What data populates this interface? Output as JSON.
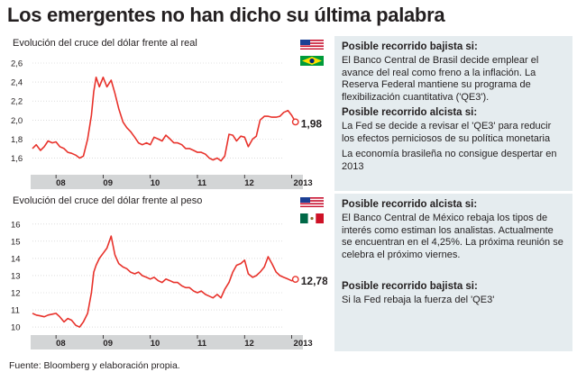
{
  "page": {
    "title": "Los emergentes no han dicho su última palabra",
    "source": "Fuente: Bloomberg y elaboración propia."
  },
  "charts": {
    "brl": {
      "title": "Evolución del cruce del dólar frente al real",
      "last_label": "1,98",
      "y_ticks": [
        "2,6",
        "2,4",
        "2,2",
        "2,0",
        "1,8",
        "1,6"
      ],
      "x_ticks": [
        "08",
        "09",
        "10",
        "11",
        "12",
        "2013"
      ]
    },
    "mxn": {
      "title": "Evolución del cruce del dólar frente al peso",
      "last_label": "12,78",
      "y_ticks": [
        "16",
        "15",
        "14",
        "13",
        "12",
        "11",
        "10"
      ],
      "x_ticks": [
        "08",
        "09",
        "10",
        "11",
        "12",
        "2013"
      ]
    }
  },
  "panel_top": {
    "head_1": "Posible recorrido bajista si:",
    "text_1": "El Banco Central de Brasil decide emplear el avance del real como freno a la inflación. La Reserva Federal mantiene su programa de flexibilización cuantitativa ('QE3').",
    "head_2": "Posible recorrido alcista si:",
    "text_2": "La Fed se decide a revisar el 'QE3' para reducir los efectos perniciosos de su política monetaria",
    "text_3": "La economía brasileña no consigue despertar en 2013"
  },
  "panel_bottom": {
    "head_1": "Posible recorrido alcista si:",
    "text_1": "El Banco Central de México rebaja los tipos de interés como estiman los analistas. Actualmente se encuentran en el 4,25%. La próxima reunión se celebra el próximo viernes.",
    "head_2": "Posible recorrido bajista si:",
    "text_2": "Si la Fed rebaja la fuerza del 'QE3'"
  },
  "colors": {
    "line": "#e8322b",
    "axis_band": "#d3d5d6",
    "panel_bg": "#e5ecef",
    "grid": "#c8c8c8"
  },
  "chart_data": [
    {
      "type": "line",
      "title": "Evolución del cruce del dólar frente al real",
      "x_ticks": [
        "08",
        "09",
        "10",
        "11",
        "12",
        "2013"
      ],
      "ylim": [
        1.5,
        2.6
      ],
      "y_ticks": [
        1.6,
        1.8,
        2.0,
        2.2,
        2.4,
        2.6
      ],
      "grid": true,
      "last_value": 1.98,
      "series": [
        {
          "x": [
            2007.5,
            2007.58,
            2007.67,
            2007.75,
            2007.83,
            2007.92,
            2008.0,
            2008.08,
            2008.17,
            2008.25,
            2008.33,
            2008.42,
            2008.5,
            2008.58,
            2008.67,
            2008.75,
            2008.8,
            2008.85,
            2008.92,
            2009.0,
            2009.08,
            2009.17,
            2009.25,
            2009.33,
            2009.42,
            2009.5,
            2009.58,
            2009.67,
            2009.75,
            2009.83,
            2009.92,
            2010.0,
            2010.08,
            2010.17,
            2010.25,
            2010.33,
            2010.42,
            2010.5,
            2010.58,
            2010.67,
            2010.75,
            2010.83,
            2010.92,
            2011.0,
            2011.08,
            2011.17,
            2011.25,
            2011.33,
            2011.42,
            2011.5,
            2011.58,
            2011.67,
            2011.75,
            2011.83,
            2011.92,
            2012.0,
            2012.08,
            2012.17,
            2012.25,
            2012.33,
            2012.42,
            2012.5,
            2012.58,
            2012.67,
            2012.75,
            2012.83,
            2012.92,
            2013.0,
            2013.08
          ],
          "values": [
            1.7,
            1.74,
            1.68,
            1.72,
            1.78,
            1.76,
            1.77,
            1.72,
            1.7,
            1.66,
            1.65,
            1.63,
            1.6,
            1.62,
            1.8,
            2.05,
            2.3,
            2.45,
            2.35,
            2.45,
            2.35,
            2.42,
            2.28,
            2.12,
            1.98,
            1.92,
            1.88,
            1.82,
            1.76,
            1.74,
            1.76,
            1.74,
            1.82,
            1.8,
            1.78,
            1.84,
            1.8,
            1.76,
            1.76,
            1.74,
            1.7,
            1.7,
            1.68,
            1.66,
            1.66,
            1.64,
            1.6,
            1.58,
            1.6,
            1.57,
            1.62,
            1.85,
            1.84,
            1.78,
            1.83,
            1.82,
            1.72,
            1.8,
            1.83,
            2.0,
            2.04,
            2.04,
            2.03,
            2.03,
            2.04,
            2.08,
            2.1,
            2.05,
            1.98
          ]
        }
      ]
    },
    {
      "type": "line",
      "title": "Evolución del cruce del dólar frente al peso",
      "x_ticks": [
        "08",
        "09",
        "10",
        "11",
        "12",
        "2013"
      ],
      "ylim": [
        9.9,
        16.2
      ],
      "y_ticks": [
        10,
        11,
        12,
        13,
        14,
        15,
        16
      ],
      "grid": true,
      "last_value": 12.78,
      "series": [
        {
          "x": [
            2007.5,
            2007.58,
            2007.67,
            2007.75,
            2007.83,
            2007.92,
            2008.0,
            2008.08,
            2008.17,
            2008.25,
            2008.33,
            2008.42,
            2008.5,
            2008.58,
            2008.67,
            2008.75,
            2008.8,
            2008.85,
            2008.92,
            2009.0,
            2009.08,
            2009.17,
            2009.25,
            2009.33,
            2009.42,
            2009.5,
            2009.58,
            2009.67,
            2009.75,
            2009.83,
            2009.92,
            2010.0,
            2010.08,
            2010.17,
            2010.25,
            2010.33,
            2010.42,
            2010.5,
            2010.58,
            2010.67,
            2010.75,
            2010.83,
            2010.92,
            2011.0,
            2011.08,
            2011.17,
            2011.25,
            2011.33,
            2011.42,
            2011.5,
            2011.58,
            2011.67,
            2011.75,
            2011.83,
            2011.92,
            2012.0,
            2012.08,
            2012.17,
            2012.25,
            2012.33,
            2012.42,
            2012.5,
            2012.58,
            2012.67,
            2012.75,
            2012.83,
            2012.92,
            2013.0,
            2013.08
          ],
          "values": [
            10.8,
            10.7,
            10.65,
            10.6,
            10.7,
            10.75,
            10.8,
            10.6,
            10.3,
            10.5,
            10.4,
            10.1,
            10.0,
            10.3,
            10.8,
            12.0,
            13.2,
            13.6,
            14.0,
            14.3,
            14.6,
            15.3,
            14.2,
            13.7,
            13.5,
            13.4,
            13.2,
            13.1,
            13.2,
            13.0,
            12.9,
            12.8,
            12.9,
            12.7,
            12.6,
            12.8,
            12.7,
            12.6,
            12.6,
            12.4,
            12.3,
            12.3,
            12.1,
            12.0,
            12.1,
            11.9,
            11.8,
            11.7,
            11.9,
            11.7,
            12.2,
            12.6,
            13.2,
            13.6,
            13.7,
            13.9,
            13.1,
            12.9,
            13.0,
            13.2,
            13.5,
            14.1,
            13.7,
            13.2,
            13.0,
            12.9,
            12.8,
            12.7,
            12.78
          ]
        }
      ]
    }
  ]
}
